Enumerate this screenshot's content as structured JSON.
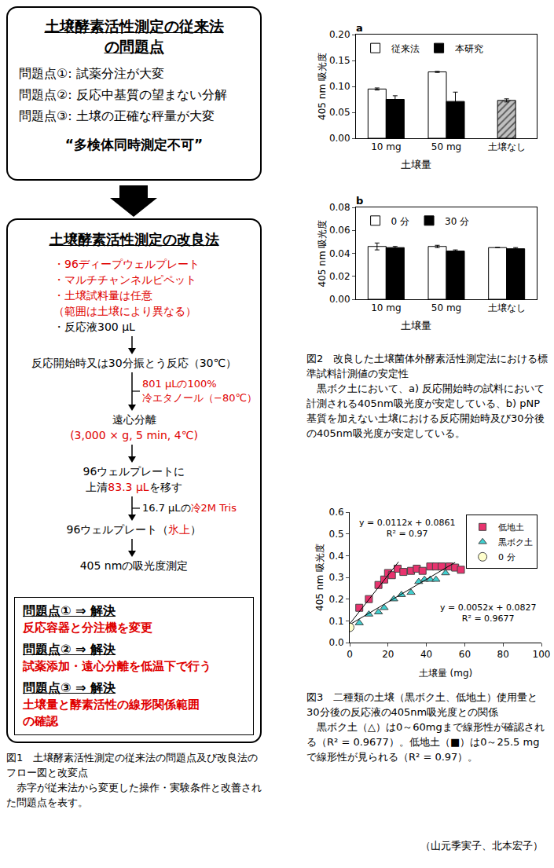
{
  "figure1": {
    "problems_box": {
      "title": [
        "土壌酵素活性測定の従来法",
        "の問題点"
      ],
      "items": [
        "問題点①: 試薬分注が大変",
        "問題点②: 反応中基質の望まない分解",
        "問題点③: 土壌の正確な秤量が大変"
      ],
      "conclusion": "“多検体同時測定不可”"
    },
    "method_box": {
      "title": "土壌酵素活性測定の改良法",
      "conditions": [
        [
          {
            "text": "・96ディープウェルプレート",
            "color": "#e00000"
          }
        ],
        [
          {
            "text": "・マルチチャンネルピペット",
            "color": "#e00000"
          }
        ],
        [
          {
            "text": "・土壌試料量は任意",
            "color": "#e00000"
          }
        ],
        [
          {
            "text": "（範囲は土壌により異なる）",
            "color": "#e00000"
          }
        ],
        [
          {
            "text": "・反応液300 μL"
          }
        ]
      ],
      "steps": [
        {
          "lines": [
            [
              {
                "text": "反応開始時又は30分振とう反応（30℃）"
              }
            ]
          ],
          "reagent": [
            [
              {
                "text": "801 μLの100%",
                "color": "#e00000"
              }
            ],
            [
              {
                "text": "冷エタノール（−80℃）",
                "color": "#e00000"
              }
            ]
          ]
        },
        {
          "lines": [
            [
              {
                "text": "遠心分離"
              }
            ],
            [
              {
                "text": "(3,000 × g, 5 min, 4℃)",
                "color": "#e00000"
              }
            ]
          ]
        },
        {
          "lines": [
            [
              {
                "text": "96ウェルプレートに"
              }
            ],
            [
              {
                "text": "上清"
              },
              {
                "text": "83.3 μL",
                "color": "#e00000"
              },
              {
                "text": "を移す"
              }
            ]
          ],
          "reagent": [
            [
              {
                "text": "16.7 μLの"
              },
              {
                "text": "冷2M Tris",
                "color": "#e00000"
              }
            ]
          ]
        },
        {
          "lines": [
            [
              {
                "text": "96ウェルプレート（"
              },
              {
                "text": "氷上",
                "color": "#e00000"
              },
              {
                "text": "）"
              }
            ]
          ]
        },
        {
          "lines": [
            [
              {
                "text": "405 nmの吸光度測定"
              }
            ]
          ]
        }
      ],
      "solutions": [
        {
          "heading": "問題点① ⇒ 解決",
          "lines": [
            {
              "text": "反応容器と分注機を変更",
              "color": "#e00000"
            }
          ]
        },
        {
          "heading": "問題点② ⇒ 解決",
          "lines": [
            {
              "text": "試薬添加・遠心分離を低温下で行う",
              "color": "#e00000"
            }
          ]
        },
        {
          "heading": "問題点③ ⇒ 解決",
          "lines": [
            {
              "text": "土壌量と酵素活性の線形関係範囲",
              "color": "#e00000"
            },
            {
              "text": "の確認",
              "color": "#e00000"
            }
          ]
        }
      ]
    }
  },
  "chart_data": [
    {
      "type": "bar",
      "title": "a",
      "ylabel": "405 nm 吸光度",
      "categories": [
        "10 mg",
        "50 mg",
        "土壌なし"
      ],
      "annotations": [
        {
          "text": "土壌量",
          "span": [
            "10 mg",
            "50 mg"
          ]
        }
      ],
      "series": [
        {
          "name": "従来法",
          "color": "#ffffff",
          "values": [
            0.095,
            0.128,
            null
          ],
          "error": [
            0.002,
            0.001,
            null
          ]
        },
        {
          "name": "本研究",
          "color": "#000000",
          "values": [
            0.075,
            0.071,
            null
          ],
          "error": [
            0.007,
            0.018,
            null
          ]
        },
        {
          "color": "#c0c0c0",
          "marker": "hatch",
          "values": [
            null,
            null,
            0.073
          ],
          "error": [
            null,
            null,
            0.003
          ]
        }
      ],
      "ylim": [
        0,
        0.2
      ],
      "yticks": [
        {
          "value": 0,
          "label": "0.00"
        },
        0.05,
        {
          "value": 0.1,
          "label": "0.10"
        },
        0.15,
        {
          "value": 0.2,
          "label": "0.20"
        }
      ],
      "grid": false,
      "legend": "top left"
    },
    {
      "type": "bar",
      "title": "b",
      "ylabel": "405 nm 吸光度",
      "categories": [
        "10 mg",
        "50 mg",
        "土壌なし"
      ],
      "annotations": [
        {
          "text": "土壌量",
          "span": [
            "10 mg",
            "50 mg"
          ]
        }
      ],
      "series": [
        {
          "name": "0 分",
          "color": "#ffffff",
          "values": [
            0.046,
            0.046,
            0.045
          ],
          "error": [
            0.003,
            0.001,
            0
          ]
        },
        {
          "name": "30 分",
          "color": "#000000",
          "values": [
            0.045,
            0.042,
            0.044
          ],
          "error": [
            0.001,
            0.001,
            0.001
          ]
        }
      ],
      "ylim": [
        0,
        0.08
      ],
      "yticks": [
        {
          "value": 0,
          "label": "0.00"
        },
        0.02,
        0.04,
        0.06,
        0.08
      ],
      "grid": false,
      "legend": "top left"
    },
    {
      "type": "scatter",
      "xlabel": "土壌量 (mg)",
      "ylabel": "405 nm 吸光度",
      "series": [
        {
          "name": "低地土",
          "color": "#e8336e",
          "marker": "square",
          "x": [
            5,
            10,
            15,
            18,
            20,
            22,
            25,
            28,
            32,
            35,
            38,
            42,
            45,
            48,
            52,
            55,
            58
          ],
          "values": [
            0.16,
            0.2,
            0.265,
            0.29,
            0.32,
            0.31,
            0.34,
            0.325,
            0.33,
            0.34,
            0.33,
            0.35,
            0.35,
            0.35,
            0.35,
            0.345,
            0.335
          ],
          "trendline": {
            "x": [
              0,
              25.5
            ],
            "y": [
              0.0861,
              0.3717
            ]
          },
          "equation": "y = 0.0112x + 0.0861",
          "r2": "R² = 0.97"
        },
        {
          "name": "黒ボク土",
          "color": "#40d0d0",
          "marker": "triangle-up",
          "x": [
            5,
            10,
            15,
            18,
            23,
            27,
            32,
            36,
            39,
            42,
            45,
            50
          ],
          "values": [
            0.09,
            0.13,
            0.14,
            0.16,
            0.2,
            0.22,
            0.23,
            0.28,
            0.29,
            0.29,
            0.29,
            0.32
          ],
          "trendline": {
            "x": [
              0,
              55
            ],
            "y": [
              0.0827,
              0.3687
            ]
          },
          "equation": "y = 0.0052x + 0.0827",
          "r2": "R² = 0.9677"
        },
        {
          "name": "0 分",
          "color": "#ffffcc",
          "marker": "circle",
          "x": [
            0
          ],
          "values": [
            0.07
          ]
        }
      ],
      "xlim": [
        0,
        100
      ],
      "xticks": [
        0,
        20,
        40,
        60,
        80,
        100
      ],
      "ylim": [
        0,
        0.6
      ],
      "yticks": [
        {
          "value": 0,
          "label": "0.0"
        },
        0.1,
        0.2,
        0.3,
        0.4,
        0.5,
        0.6
      ],
      "grid": false,
      "legend": "top right"
    }
  ],
  "captions": [
    {
      "title": "図1　土壌酵素活性測定の従来法の問題点及び改良法のフロー図と改変点",
      "body": "赤字が従来法から変更した操作・実験条件と改善された問題点を表す。"
    },
    {
      "title": "図2　改良した土壌菌体外酵素活性測定法における標準試料計測値の安定性",
      "body": "黒ボク土において、a) 反応開始時の試料において計測される405nm吸光度が安定している、b) pNP基質を加えない土壌における反応開始時及び30分後の405nm吸光度が安定している。"
    },
    {
      "title": "図3　二種類の土壌（黒ボク土、低地土）使用量と30分後の反応液の405nm吸光度との関係",
      "body": "黒ボク土（△）は0～60mgまで線形性が確認される（R² = 0.9677）。低地土（■）は0～25.5 mgで線形性が見られる（R² = 0.97）。"
    }
  ],
  "credit": "（山元季実子、北本宏子）"
}
